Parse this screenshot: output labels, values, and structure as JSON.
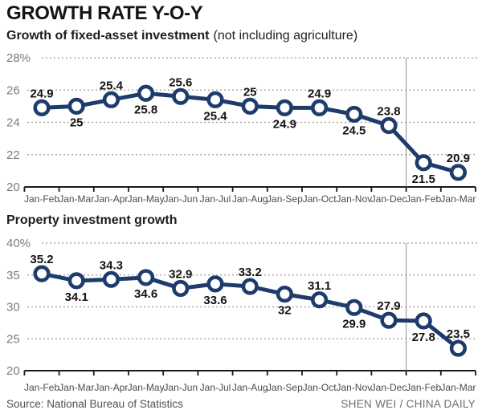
{
  "header": {
    "title": "GROWTH RATE Y-O-Y"
  },
  "source": {
    "label": "Source: National Bureau of Statistics",
    "credit": "SHEN WEI / CHINA DAILY"
  },
  "colors": {
    "line": "#1e3c6b",
    "point_fill": "#ffffff",
    "grid": "#9b9b9b",
    "axis": "#1a1a1a",
    "y_label": "#7c7c7c",
    "x_label": "#4b4b4b",
    "value_label": "#141414",
    "divider": "#8a8a8a"
  },
  "chart_data": [
    {
      "type": "line",
      "title": "Growth of fixed-asset investment",
      "title_note": "(not including agriculture)",
      "unit": "%",
      "categories": [
        "Jan-Feb",
        "Jan-Mar",
        "Jan-Apr",
        "Jan-May",
        "Jan-Jun",
        "Jan-Jul",
        "Jan-Aug",
        "Jan-Sep",
        "Jan-Oct",
        "Jan-Nov",
        "Jan-Dec",
        "Jan-Feb",
        "Jan-Mar"
      ],
      "values": [
        24.9,
        25,
        25.4,
        25.8,
        25.6,
        25.4,
        25,
        24.9,
        24.9,
        24.5,
        23.8,
        21.5,
        20.9
      ],
      "ylim": [
        20,
        28
      ],
      "yticks": [
        28,
        26,
        24,
        22,
        20
      ],
      "grid": "dashed-horizontal",
      "legend": "none",
      "divider_after_index": 10,
      "value_label_alternation": "above-first"
    },
    {
      "type": "line",
      "title": "Property investment growth",
      "title_note": "",
      "unit": "%",
      "categories": [
        "Jan-Feb",
        "Jan-Mar",
        "Jan-Apr",
        "Jan-May",
        "Jan-Jun",
        "Jan-Jul",
        "Jan-Aug",
        "Jan-Sep",
        "Jan-Oct",
        "Jan-Nov",
        "Jan-Dec",
        "Jan-Feb",
        "Jan-Mar"
      ],
      "values": [
        35.2,
        34.1,
        34.3,
        34.6,
        32.9,
        33.6,
        33.2,
        32,
        31.1,
        29.9,
        27.9,
        27.8,
        23.5
      ],
      "ylim": [
        20,
        40
      ],
      "yticks": [
        40,
        35,
        30,
        25,
        20
      ],
      "grid": "dashed-horizontal",
      "legend": "none",
      "divider_after_index": 10,
      "value_label_alternation": "above-first"
    }
  ]
}
